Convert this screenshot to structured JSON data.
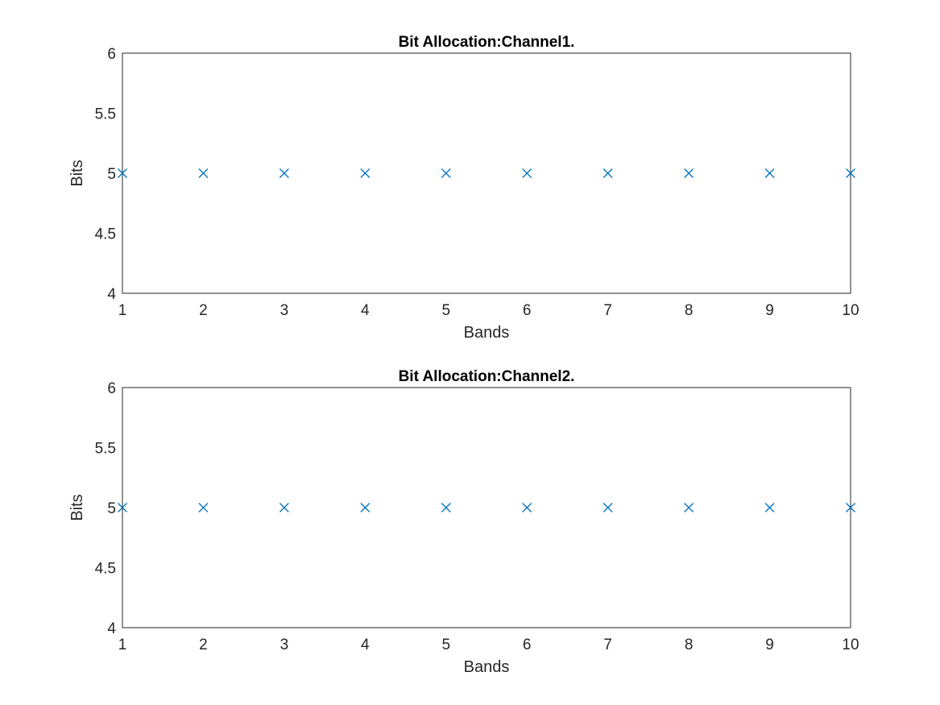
{
  "chart_data": [
    {
      "type": "scatter",
      "title": "Bit Allocation:Channel1.",
      "xlabel": "Bands",
      "ylabel": "Bits",
      "xlim": [
        1,
        10
      ],
      "ylim": [
        4,
        6
      ],
      "x_ticks": [
        1,
        2,
        3,
        4,
        5,
        6,
        7,
        8,
        9,
        10
      ],
      "y_ticks": [
        4,
        4.5,
        5,
        5.5,
        6
      ],
      "grid": true,
      "marker": "x",
      "color": "#0072BD",
      "x": [
        1,
        2,
        3,
        4,
        5,
        6,
        7,
        8,
        9,
        10
      ],
      "y": [
        5,
        5,
        5,
        5,
        5,
        5,
        5,
        5,
        5,
        5
      ]
    },
    {
      "type": "scatter",
      "title": "Bit Allocation:Channel2.",
      "xlabel": "Bands",
      "ylabel": "Bits",
      "xlim": [
        1,
        10
      ],
      "ylim": [
        4,
        6
      ],
      "x_ticks": [
        1,
        2,
        3,
        4,
        5,
        6,
        7,
        8,
        9,
        10
      ],
      "y_ticks": [
        4,
        4.5,
        5,
        5.5,
        6
      ],
      "grid": true,
      "marker": "x",
      "color": "#0072BD",
      "x": [
        1,
        2,
        3,
        4,
        5,
        6,
        7,
        8,
        9,
        10
      ],
      "y": [
        5,
        5,
        5,
        5,
        5,
        5,
        5,
        5,
        5,
        5
      ]
    }
  ]
}
